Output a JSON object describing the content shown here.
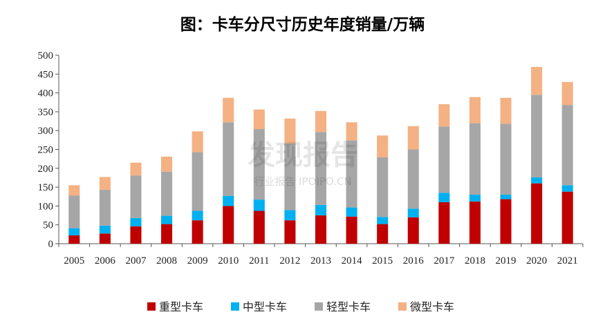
{
  "chart_data": {
    "type": "bar",
    "stacked": true,
    "title": "图：卡车分尺寸历史年度销量/万辆",
    "categories": [
      "2005",
      "2006",
      "2007",
      "2008",
      "2009",
      "2010",
      "2011",
      "2012",
      "2013",
      "2014",
      "2015",
      "2016",
      "2017",
      "2018",
      "2019",
      "2020",
      "2021"
    ],
    "series": [
      {
        "name": "重型卡车",
        "color": "#C00000",
        "values": [
          22,
          27,
          46,
          52,
          62,
          100,
          87,
          62,
          75,
          72,
          52,
          70,
          110,
          112,
          118,
          160,
          138
        ]
      },
      {
        "name": "中型卡车",
        "color": "#00B0F0",
        "values": [
          19,
          21,
          22,
          22,
          25,
          27,
          30,
          27,
          28,
          24,
          19,
          23,
          25,
          18,
          12,
          16,
          17
        ]
      },
      {
        "name": "轻型卡车",
        "color": "#A6A6A6",
        "values": [
          87,
          95,
          113,
          117,
          156,
          195,
          187,
          177,
          193,
          178,
          158,
          157,
          176,
          190,
          188,
          219,
          213
        ]
      },
      {
        "name": "微型卡车",
        "color": "#F4B183",
        "values": [
          27,
          34,
          34,
          40,
          55,
          65,
          52,
          66,
          56,
          48,
          58,
          62,
          59,
          69,
          69,
          74,
          61
        ]
      }
    ],
    "ylim": [
      0,
      500
    ],
    "yticks": [
      0,
      50,
      100,
      150,
      200,
      250,
      300,
      350,
      400,
      450,
      500
    ],
    "grid": false,
    "legend_position": "bottom"
  },
  "watermark": {
    "main": "发现报告",
    "sub": "行业报告 IPOIPO.CN"
  }
}
